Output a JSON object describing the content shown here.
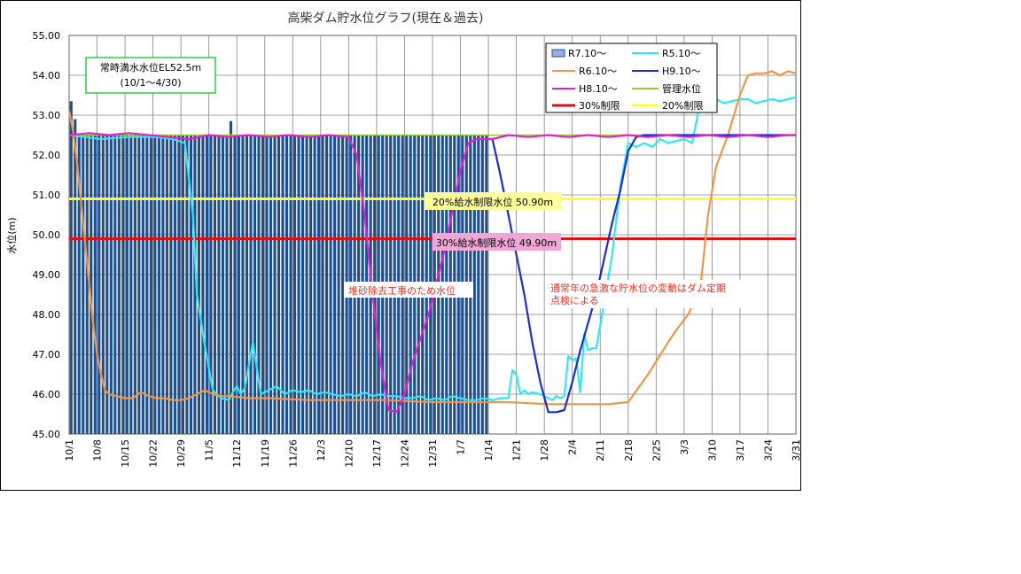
{
  "chart_data": {
    "type": "line",
    "title": "高柴ダム貯水位グラフ(現在＆過去)",
    "ylabel": "水位(m)",
    "xlabel": "",
    "ylim": [
      45.0,
      55.0
    ],
    "yticks": [
      "45.00",
      "46.00",
      "47.00",
      "48.00",
      "49.00",
      "50.00",
      "51.00",
      "52.00",
      "53.00",
      "54.00",
      "55.00"
    ],
    "x_tick_labels": [
      "10/1",
      "10/8",
      "10/15",
      "10/22",
      "10/29",
      "11/5",
      "11/12",
      "11/19",
      "11/26",
      "12/3",
      "12/10",
      "12/17",
      "12/24",
      "12/31",
      "1/7",
      "1/14",
      "1/21",
      "1/28",
      "2/4",
      "2/11",
      "2/18",
      "2/25",
      "3/3",
      "3/10",
      "3/17",
      "3/24",
      "3/31"
    ],
    "x_unit": "days from 10/1 (10/1 to 3/31)",
    "grid": true,
    "legend_position": "top-right",
    "bars": {
      "name": "R7.10～",
      "color": "#1F4E8C",
      "x": [
        0,
        1,
        2,
        3,
        4,
        5,
        6,
        7,
        8,
        9,
        10,
        11,
        12,
        13,
        14,
        15,
        16,
        17,
        18,
        19,
        20,
        21,
        22,
        23,
        24,
        25,
        26,
        27,
        28,
        29,
        30,
        31,
        32,
        33,
        34,
        35,
        36,
        37,
        38,
        39,
        40,
        41,
        42,
        43,
        44,
        45,
        46,
        47,
        48,
        49,
        50,
        51,
        52,
        53,
        54,
        55,
        56,
        57,
        58,
        59,
        60,
        61,
        62,
        63,
        64,
        65,
        66,
        67,
        68,
        69,
        70,
        71,
        72,
        73,
        74,
        75,
        76,
        77,
        78,
        79,
        80,
        81,
        82,
        83,
        84,
        85,
        86,
        87,
        88,
        89,
        90,
        91,
        92,
        93,
        94,
        95,
        96,
        97,
        98,
        99,
        100,
        101,
        102,
        103,
        104
      ],
      "values": [
        53.35,
        52.9,
        52.5,
        52.5,
        52.5,
        52.5,
        52.5,
        52.5,
        52.5,
        52.5,
        52.5,
        52.5,
        52.5,
        52.5,
        52.5,
        52.5,
        52.5,
        52.5,
        52.5,
        52.5,
        52.5,
        52.5,
        52.5,
        52.5,
        52.5,
        52.5,
        52.5,
        52.5,
        52.5,
        52.5,
        52.5,
        52.5,
        52.5,
        52.5,
        52.5,
        52.5,
        52.5,
        52.5,
        52.5,
        52.5,
        52.85,
        52.5,
        52.5,
        52.5,
        52.5,
        52.5,
        52.5,
        52.5,
        52.5,
        52.5,
        52.5,
        52.5,
        52.5,
        52.5,
        52.5,
        52.5,
        52.5,
        52.5,
        52.5,
        52.5,
        52.5,
        52.5,
        52.5,
        52.5,
        52.5,
        52.5,
        52.5,
        52.5,
        52.5,
        52.5,
        52.5,
        52.5,
        52.5,
        52.5,
        52.5,
        52.5,
        52.5,
        52.5,
        52.5,
        52.5,
        52.5,
        52.5,
        52.5,
        52.5,
        52.5,
        52.5,
        52.5,
        52.5,
        52.5,
        52.5,
        52.5,
        52.5,
        52.5,
        52.5,
        52.5,
        52.5,
        52.5,
        52.5,
        52.5,
        52.5,
        52.5,
        52.5,
        52.5,
        52.5,
        52.5
      ]
    },
    "series": [
      {
        "name": "R5.10～",
        "color": "#33E6F0",
        "x": [
          0,
          4,
          8,
          15,
          22,
          26,
          29,
          31,
          32,
          34,
          36,
          38,
          40,
          41,
          42,
          43,
          44,
          46,
          48,
          50,
          52,
          54,
          56,
          58,
          60,
          62,
          64,
          66,
          68,
          70,
          72,
          74,
          76,
          78,
          80,
          82,
          84,
          86,
          88,
          90,
          92,
          94,
          96,
          98,
          100,
          102,
          104,
          106,
          108,
          110,
          111,
          112,
          113,
          114,
          115,
          116,
          118,
          120,
          121,
          122,
          123,
          124,
          125,
          126,
          127,
          128,
          129,
          130,
          131,
          132,
          134,
          136,
          138,
          140,
          142,
          144,
          146,
          148,
          150,
          152,
          154,
          156,
          158,
          160,
          162,
          164,
          166,
          168,
          170,
          172,
          174,
          176,
          178,
          180,
          182
        ],
        "values": [
          52.5,
          52.45,
          52.4,
          52.45,
          52.45,
          52.4,
          52.3,
          50.5,
          48.5,
          47.2,
          46.1,
          45.9,
          45.85,
          46.05,
          46.2,
          46.0,
          46.15,
          47.3,
          46.0,
          46.1,
          46.2,
          46.0,
          46.1,
          46.05,
          46.1,
          46.0,
          46.05,
          46.0,
          45.95,
          46.0,
          45.95,
          46.05,
          45.95,
          46.0,
          45.95,
          45.95,
          45.9,
          45.9,
          45.95,
          45.85,
          45.9,
          45.85,
          45.95,
          45.9,
          45.85,
          45.85,
          45.9,
          45.85,
          45.9,
          45.9,
          46.6,
          46.5,
          46.0,
          46.1,
          46.0,
          46.05,
          46.0,
          45.9,
          45.85,
          45.95,
          45.9,
          45.95,
          46.95,
          46.85,
          46.9,
          46.05,
          47.5,
          47.1,
          47.15,
          47.15,
          48.3,
          49.5,
          51.2,
          52.3,
          52.2,
          52.3,
          52.2,
          52.4,
          52.3,
          52.35,
          52.4,
          52.3,
          53.3,
          53.35,
          53.4,
          53.3,
          53.35,
          53.4,
          53.4,
          53.3,
          53.35,
          53.4,
          53.35,
          53.4,
          53.45
        ]
      },
      {
        "name": "R6.10～",
        "color": "#F0964A",
        "x": [
          0,
          1,
          2,
          3,
          4,
          5,
          6,
          7,
          8,
          9,
          10,
          12,
          14,
          16,
          18,
          20,
          22,
          24,
          26,
          28,
          30,
          32,
          34,
          36,
          38,
          40,
          45,
          50,
          60,
          70,
          80,
          90,
          100,
          110,
          120,
          130,
          135,
          140,
          145,
          150,
          152,
          155,
          158,
          160,
          162,
          165,
          168,
          170,
          172,
          174,
          176,
          178,
          180,
          182
        ],
        "values": [
          53.1,
          52.6,
          51.8,
          50.8,
          49.8,
          48.8,
          47.8,
          47.0,
          46.5,
          46.1,
          46.0,
          45.95,
          45.9,
          45.9,
          46.05,
          45.95,
          45.9,
          45.9,
          45.85,
          45.85,
          45.9,
          46.0,
          46.1,
          46.0,
          45.95,
          45.95,
          45.9,
          45.9,
          45.85,
          45.85,
          45.85,
          45.8,
          45.8,
          45.8,
          45.75,
          45.75,
          45.75,
          45.8,
          46.5,
          47.3,
          47.6,
          48.0,
          48.6,
          50.5,
          51.7,
          52.5,
          53.5,
          54.0,
          54.05,
          54.05,
          54.1,
          54.0,
          54.1,
          54.05
        ]
      },
      {
        "name": "H9.10～",
        "color": "#1A2FBF",
        "x": [
          104,
          106,
          108,
          110,
          112,
          114,
          116,
          118,
          120,
          122,
          124,
          126,
          128,
          130,
          132,
          134,
          136,
          138,
          140,
          142,
          144,
          146,
          148,
          150,
          152,
          154,
          156,
          158,
          160,
          162,
          164,
          166,
          168,
          170,
          172,
          174,
          176,
          178,
          180,
          182
        ],
        "values": [
          52.4,
          52.4,
          51.5,
          50.5,
          49.5,
          48.5,
          47.3,
          46.3,
          45.55,
          45.55,
          45.6,
          46.3,
          47.1,
          47.8,
          48.5,
          49.4,
          50.3,
          51.1,
          52.1,
          52.45,
          52.5,
          52.5,
          52.5,
          52.5,
          52.5,
          52.5,
          52.5,
          52.5,
          52.5,
          52.5,
          52.5,
          52.5,
          52.5,
          52.5,
          52.5,
          52.5,
          52.5,
          52.5,
          52.5,
          52.5
        ]
      },
      {
        "name": "H8.10～",
        "color": "#E020D0",
        "x": [
          0,
          5,
          10,
          15,
          20,
          25,
          30,
          35,
          40,
          45,
          50,
          55,
          60,
          65,
          70,
          72,
          74,
          76,
          78,
          80,
          82,
          84,
          86,
          88,
          90,
          92,
          94,
          96,
          98,
          100,
          102,
          104,
          106,
          110,
          115,
          120,
          125,
          130,
          135,
          140,
          145,
          150,
          155,
          160,
          165,
          170,
          175,
          180,
          182
        ],
        "values": [
          52.5,
          52.55,
          52.5,
          52.55,
          52.5,
          52.45,
          52.4,
          52.5,
          52.45,
          52.5,
          52.45,
          52.5,
          52.45,
          52.5,
          52.45,
          52.0,
          50.5,
          48.5,
          46.8,
          45.6,
          45.55,
          46.0,
          46.8,
          47.4,
          48.0,
          48.8,
          49.6,
          50.6,
          51.6,
          52.3,
          52.4,
          52.4,
          52.4,
          52.5,
          52.45,
          52.5,
          52.45,
          52.5,
          52.45,
          52.5,
          52.45,
          52.5,
          52.45,
          52.5,
          52.45,
          52.5,
          52.45,
          52.5,
          52.5
        ]
      }
    ],
    "reference_lines": [
      {
        "name": "管理水位",
        "value": 52.5,
        "color": "#99CC33"
      },
      {
        "name": "30%制限",
        "value": 49.9,
        "color": "#DD1111"
      },
      {
        "name": "20%制限",
        "value": 50.9,
        "color": "#FFFF33"
      }
    ],
    "legend": [
      "R7.10～",
      "R5.10～",
      "R6.10～",
      "H9.10～",
      "H8.10～",
      "管理水位",
      "30%制限",
      "20%制限"
    ],
    "annotations": {
      "box1_line1": "常時満水水位EL52.5m",
      "box1_line2": "(10/1～4/30)",
      "label20": "20%給水制限水位 50.90m",
      "label30": "30%給水制限水位 49.90m",
      "note_a": "堆砂除去工事のため水位",
      "note_b1": "通常年の急激な貯水位の変動はダム定期",
      "note_b2": "点検による"
    }
  }
}
